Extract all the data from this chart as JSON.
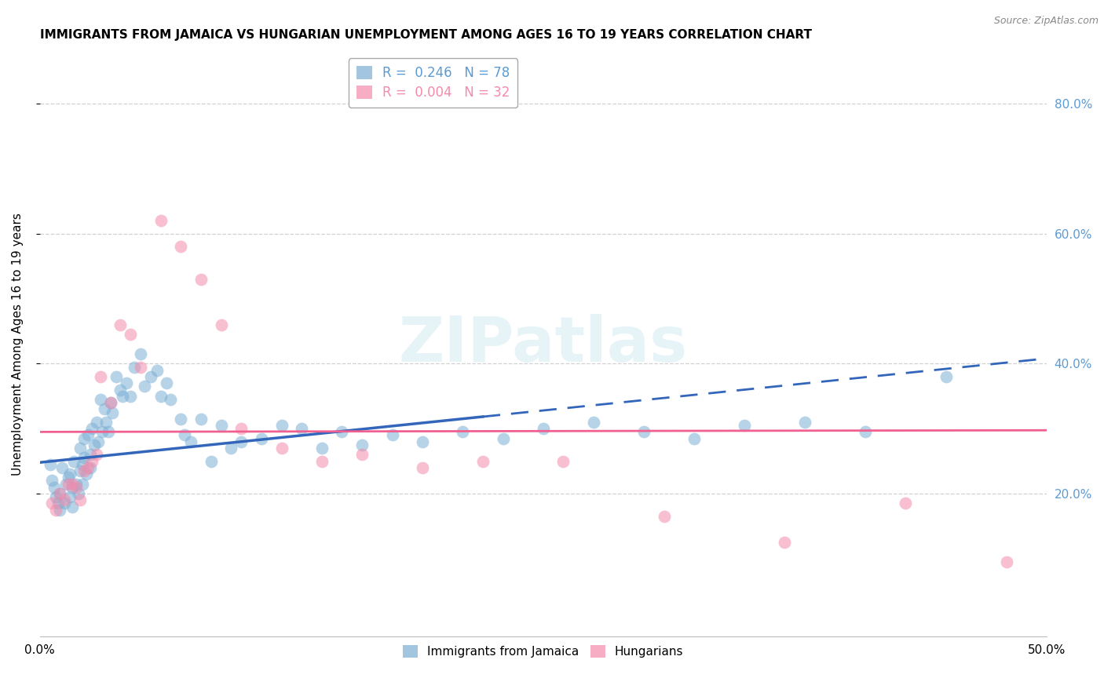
{
  "title": "IMMIGRANTS FROM JAMAICA VS HUNGARIAN UNEMPLOYMENT AMONG AGES 16 TO 19 YEARS CORRELATION CHART",
  "source": "Source: ZipAtlas.com",
  "ylabel": "Unemployment Among Ages 16 to 19 years",
  "y_tick_labels": [
    "20.0%",
    "40.0%",
    "60.0%",
    "80.0%"
  ],
  "y_tick_values": [
    0.2,
    0.4,
    0.6,
    0.8
  ],
  "x_lim": [
    0.0,
    0.5
  ],
  "y_lim": [
    -0.02,
    0.88
  ],
  "legend1_label": "R =  0.246   N = 78",
  "legend2_label": "R =  0.004   N = 32",
  "legend1_color": "#7BAFD4",
  "legend2_color": "#F48BAB",
  "trendline1_color": "#3366BB",
  "trendline2_color": "#F06090",
  "watermark": "ZIPatlas",
  "scatter1_x": [
    0.005,
    0.006,
    0.007,
    0.008,
    0.009,
    0.01,
    0.01,
    0.011,
    0.012,
    0.013,
    0.014,
    0.015,
    0.015,
    0.016,
    0.016,
    0.017,
    0.018,
    0.019,
    0.02,
    0.02,
    0.021,
    0.021,
    0.022,
    0.022,
    0.023,
    0.024,
    0.025,
    0.025,
    0.026,
    0.027,
    0.028,
    0.029,
    0.03,
    0.031,
    0.032,
    0.033,
    0.034,
    0.035,
    0.036,
    0.038,
    0.04,
    0.041,
    0.043,
    0.045,
    0.047,
    0.05,
    0.052,
    0.055,
    0.058,
    0.06,
    0.063,
    0.065,
    0.07,
    0.072,
    0.075,
    0.08,
    0.085,
    0.09,
    0.095,
    0.1,
    0.11,
    0.12,
    0.13,
    0.14,
    0.15,
    0.16,
    0.175,
    0.19,
    0.21,
    0.23,
    0.25,
    0.275,
    0.3,
    0.325,
    0.35,
    0.38,
    0.41,
    0.45
  ],
  "scatter1_y": [
    0.245,
    0.22,
    0.21,
    0.195,
    0.185,
    0.2,
    0.175,
    0.24,
    0.185,
    0.215,
    0.225,
    0.195,
    0.23,
    0.21,
    0.18,
    0.25,
    0.215,
    0.2,
    0.235,
    0.27,
    0.245,
    0.215,
    0.285,
    0.255,
    0.23,
    0.29,
    0.26,
    0.24,
    0.3,
    0.275,
    0.31,
    0.28,
    0.345,
    0.295,
    0.33,
    0.31,
    0.295,
    0.34,
    0.325,
    0.38,
    0.36,
    0.35,
    0.37,
    0.35,
    0.395,
    0.415,
    0.365,
    0.38,
    0.39,
    0.35,
    0.37,
    0.345,
    0.315,
    0.29,
    0.28,
    0.315,
    0.25,
    0.305,
    0.27,
    0.28,
    0.285,
    0.305,
    0.3,
    0.27,
    0.295,
    0.275,
    0.29,
    0.28,
    0.295,
    0.285,
    0.3,
    0.31,
    0.295,
    0.285,
    0.305,
    0.31,
    0.295,
    0.38
  ],
  "scatter2_x": [
    0.006,
    0.008,
    0.01,
    0.012,
    0.014,
    0.016,
    0.018,
    0.02,
    0.022,
    0.024,
    0.026,
    0.028,
    0.03,
    0.035,
    0.04,
    0.045,
    0.05,
    0.06,
    0.07,
    0.08,
    0.09,
    0.1,
    0.12,
    0.14,
    0.16,
    0.19,
    0.22,
    0.26,
    0.31,
    0.37,
    0.43,
    0.48
  ],
  "scatter2_y": [
    0.185,
    0.175,
    0.2,
    0.19,
    0.215,
    0.215,
    0.21,
    0.19,
    0.235,
    0.24,
    0.25,
    0.26,
    0.38,
    0.34,
    0.46,
    0.445,
    0.395,
    0.62,
    0.58,
    0.53,
    0.46,
    0.3,
    0.27,
    0.25,
    0.26,
    0.24,
    0.25,
    0.25,
    0.165,
    0.125,
    0.185,
    0.095
  ],
  "grid_color": "#CCCCCC",
  "background_color": "#FFFFFF",
  "right_axis_color": "#5B9BD5",
  "title_fontsize": 11,
  "axis_label_fontsize": 11,
  "tick_fontsize": 11
}
